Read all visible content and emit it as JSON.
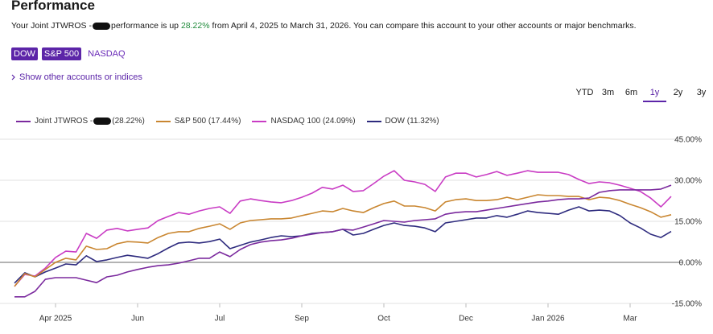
{
  "header": {
    "title": "Performance",
    "summary": {
      "prefix": "Your Joint JTWROS -",
      "middle": "performance is up ",
      "change": "28.22%",
      "suffix": " from April 4, 2025 to March 31, 2026. You can compare this account to your other accounts or major benchmarks."
    }
  },
  "benchmarks": [
    {
      "label": "DOW",
      "selected": true
    },
    {
      "label": "S&P 500",
      "selected": true
    },
    {
      "label": "NASDAQ",
      "selected": false
    }
  ],
  "link": "Show other accounts or indices",
  "ranges": {
    "options": [
      "YTD",
      "3m",
      "6m",
      "1y",
      "2y",
      "3y"
    ],
    "selected": 3
  },
  "chart_data": {
    "type": "line",
    "categories": [
      null,
      null,
      null,
      null,
      "Apr 2025",
      null,
      null,
      null,
      null,
      null,
      null,
      null,
      "Jun",
      null,
      null,
      null,
      null,
      null,
      null,
      null,
      "Jul",
      null,
      null,
      null,
      null,
      null,
      null,
      null,
      "Sep",
      null,
      null,
      null,
      null,
      null,
      null,
      null,
      "Oct",
      null,
      null,
      null,
      null,
      null,
      null,
      null,
      "Dec",
      null,
      null,
      null,
      null,
      null,
      null,
      null,
      "Jan 2026",
      null,
      null,
      null,
      null,
      null,
      null,
      null,
      "Mar",
      null,
      null,
      null,
      null
    ],
    "series": [
      {
        "name": "Joint JTWROS -",
        "return": "(28.22%)",
        "color": "#7b2a9e",
        "values": [
          -12.6,
          -12.6,
          -10.6,
          -6.2,
          -5.6,
          -5.6,
          -5.6,
          -6.5,
          -7.4,
          -5.3,
          -4.7,
          -3.5,
          -2.6,
          -1.8,
          -1.2,
          -0.9,
          -0.3,
          0.6,
          1.5,
          1.5,
          3.8,
          2.1,
          4.7,
          6.5,
          7.4,
          7.9,
          8.2,
          8.8,
          9.7,
          10.3,
          10.9,
          11.2,
          12.1,
          11.8,
          12.9,
          14.1,
          15.3,
          15.0,
          14.7,
          15.3,
          15.6,
          15.9,
          17.6,
          18.2,
          18.5,
          18.5,
          19.1,
          19.7,
          20.3,
          20.9,
          21.5,
          22.1,
          22.4,
          22.9,
          23.2,
          23.2,
          23.5,
          25.6,
          26.2,
          26.5,
          26.5,
          26.5,
          26.5,
          26.8,
          28.2
        ]
      },
      {
        "name": "S&P 500",
        "return": "(17.44%)",
        "color": "#c98630",
        "values": [
          -8.8,
          -4.1,
          -5.3,
          -2.6,
          0.0,
          1.5,
          0.9,
          5.9,
          4.7,
          5.0,
          6.8,
          7.6,
          7.4,
          7.1,
          9.1,
          10.6,
          11.2,
          11.2,
          12.4,
          13.2,
          14.1,
          12.1,
          14.4,
          15.3,
          15.6,
          15.9,
          15.9,
          16.2,
          17.1,
          17.9,
          18.8,
          18.5,
          19.7,
          18.8,
          18.2,
          20.0,
          21.5,
          22.4,
          20.6,
          20.6,
          20.0,
          18.8,
          22.1,
          22.9,
          23.2,
          22.6,
          22.6,
          22.9,
          23.8,
          22.9,
          23.8,
          24.7,
          24.4,
          24.4,
          24.1,
          24.1,
          22.9,
          23.8,
          23.5,
          22.6,
          21.2,
          20.0,
          18.5,
          16.5,
          17.4
        ]
      },
      {
        "name": "NASDAQ 100",
        "return": "(24.09%)",
        "color": "#c93cc4",
        "values": [
          -8.8,
          -4.4,
          -5.0,
          -2.1,
          1.8,
          4.1,
          3.8,
          10.6,
          8.8,
          11.8,
          12.4,
          11.5,
          12.1,
          12.6,
          15.3,
          16.8,
          18.2,
          17.6,
          18.8,
          19.7,
          20.3,
          17.9,
          22.4,
          23.2,
          22.6,
          22.1,
          21.8,
          22.6,
          23.8,
          25.3,
          27.4,
          26.8,
          28.2,
          25.9,
          26.2,
          28.8,
          31.5,
          33.5,
          30.0,
          29.4,
          28.5,
          25.9,
          31.2,
          32.6,
          32.6,
          31.2,
          32.1,
          33.2,
          31.8,
          32.6,
          33.5,
          32.9,
          32.9,
          32.9,
          32.1,
          30.3,
          28.8,
          29.4,
          29.1,
          28.2,
          27.1,
          25.9,
          23.5,
          20.3,
          24.1
        ]
      },
      {
        "name": "DOW",
        "return": "(11.32%)",
        "color": "#2e2b7e",
        "values": [
          -7.6,
          -3.8,
          -5.3,
          -3.5,
          -2.1,
          -0.6,
          -0.9,
          2.4,
          0.3,
          0.9,
          1.8,
          2.6,
          2.1,
          1.5,
          3.2,
          5.3,
          7.1,
          7.4,
          7.1,
          7.6,
          8.5,
          5.0,
          6.2,
          7.4,
          8.2,
          9.1,
          9.7,
          9.4,
          9.7,
          10.6,
          10.9,
          11.2,
          12.1,
          10.0,
          10.6,
          12.1,
          13.5,
          14.4,
          13.5,
          13.2,
          12.6,
          11.2,
          14.4,
          15.0,
          15.6,
          16.2,
          16.2,
          17.1,
          16.5,
          17.6,
          18.8,
          18.2,
          17.9,
          17.6,
          19.1,
          20.3,
          18.8,
          19.1,
          18.8,
          17.1,
          14.4,
          12.6,
          10.3,
          9.1,
          11.3
        ]
      }
    ],
    "ylim": [
      -15,
      45
    ],
    "yticks": [
      {
        "value": 45,
        "label": "45.00%"
      },
      {
        "value": 30,
        "label": "30.00%"
      },
      {
        "value": 15,
        "label": "15.00%"
      },
      {
        "value": 0,
        "label": "0.00%"
      },
      {
        "value": -15,
        "label": "-15.00%"
      }
    ],
    "grid": true
  }
}
